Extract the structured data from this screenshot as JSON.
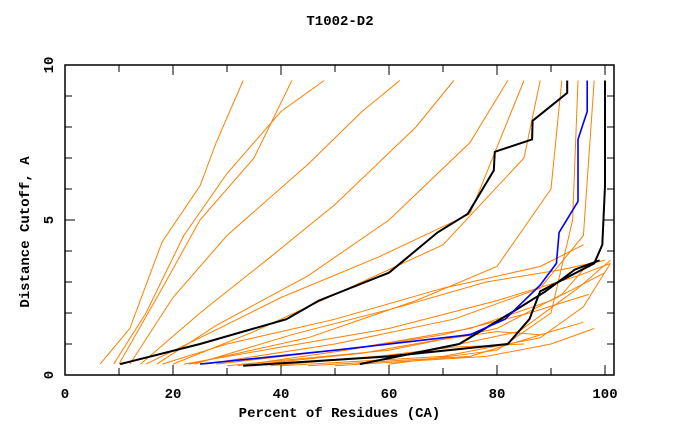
{
  "chart_data": {
    "type": "line",
    "title": "T1002-D2",
    "xlabel": "Percent of Residues (CA)",
    "ylabel": "Distance Cutoff, A",
    "xlim": [
      0,
      101.7
    ],
    "ylim": [
      0,
      10
    ],
    "xticks": [
      0,
      20,
      40,
      60,
      80,
      100
    ],
    "xtick_labels": [
      "0",
      "20",
      "40",
      "60",
      "80",
      "100"
    ],
    "yticks": [
      0,
      5,
      10
    ],
    "ytick_labels": [
      "0",
      "5",
      "10"
    ],
    "x_minor_step": 10,
    "y_minor_step": 1,
    "grid": false,
    "colors": {
      "other": "#ff8000",
      "highlight": "#000000",
      "selected": "#0000ff"
    },
    "series_orange": [
      [
        [
          6.5,
          0.35
        ],
        [
          12,
          1.5
        ],
        [
          18,
          4.3
        ],
        [
          25,
          6.1
        ],
        [
          28,
          7.5
        ],
        [
          33,
          9.5
        ]
      ],
      [
        [
          9,
          0.35
        ],
        [
          15,
          2.0
        ],
        [
          22,
          4.5
        ],
        [
          30,
          6.5
        ],
        [
          40,
          8.5
        ],
        [
          48,
          9.5
        ]
      ],
      [
        [
          12,
          0.35
        ],
        [
          20,
          2.5
        ],
        [
          30,
          4.5
        ],
        [
          45,
          6.8
        ],
        [
          55,
          8.5
        ],
        [
          62,
          9.5
        ]
      ],
      [
        [
          14,
          0.35
        ],
        [
          25,
          2.0
        ],
        [
          38,
          3.8
        ],
        [
          50,
          5.5
        ],
        [
          65,
          8.0
        ],
        [
          72,
          9.5
        ]
      ],
      [
        [
          17,
          0.35
        ],
        [
          28,
          1.6
        ],
        [
          45,
          3.2
        ],
        [
          60,
          5.0
        ],
        [
          75,
          7.5
        ],
        [
          82,
          9.5
        ]
      ],
      [
        [
          20,
          0.35
        ],
        [
          35,
          1.4
        ],
        [
          55,
          3.0
        ],
        [
          70,
          4.2
        ],
        [
          85,
          7.0
        ],
        [
          88,
          9.5
        ]
      ],
      [
        [
          23,
          0.35
        ],
        [
          45,
          1.2
        ],
        [
          65,
          2.4
        ],
        [
          80,
          3.5
        ],
        [
          90,
          6.0
        ],
        [
          92,
          9.5
        ]
      ],
      [
        [
          26,
          0.35
        ],
        [
          50,
          1.0
        ],
        [
          72,
          1.8
        ],
        [
          88,
          2.8
        ],
        [
          96,
          4.5
        ],
        [
          98,
          9.5
        ]
      ],
      [
        [
          30,
          0.3
        ],
        [
          60,
          0.8
        ],
        [
          80,
          1.5
        ],
        [
          92,
          2.6
        ],
        [
          97,
          3.6
        ]
      ],
      [
        [
          35,
          0.3
        ],
        [
          65,
          0.7
        ],
        [
          84,
          1.4
        ],
        [
          95,
          2.8
        ],
        [
          101,
          3.7
        ]
      ],
      [
        [
          40,
          0.3
        ],
        [
          70,
          0.6
        ],
        [
          88,
          1.2
        ],
        [
          96,
          2.2
        ],
        [
          101,
          3.6
        ]
      ],
      [
        [
          45,
          0.3
        ],
        [
          75,
          0.6
        ],
        [
          90,
          1.4
        ],
        [
          96,
          1.7
        ]
      ],
      [
        [
          50,
          0.3
        ],
        [
          78,
          0.6
        ],
        [
          90,
          1.0
        ],
        [
          98,
          1.5
        ]
      ],
      [
        [
          22,
          0.35
        ],
        [
          40,
          0.9
        ],
        [
          60,
          1.5
        ],
        [
          80,
          2.4
        ],
        [
          95,
          3.2
        ],
        [
          101,
          3.6
        ]
      ],
      [
        [
          28,
          0.35
        ],
        [
          55,
          0.9
        ],
        [
          75,
          1.5
        ],
        [
          90,
          2.4
        ],
        [
          100,
          3.3
        ]
      ],
      [
        [
          18,
          0.35
        ],
        [
          30,
          1.0
        ],
        [
          50,
          1.8
        ],
        [
          70,
          2.8
        ],
        [
          88,
          3.5
        ],
        [
          96,
          4.2
        ]
      ],
      [
        [
          15,
          0.35
        ],
        [
          25,
          1.2
        ],
        [
          40,
          2.5
        ],
        [
          58,
          3.8
        ],
        [
          75,
          5.2
        ],
        [
          85,
          9.5
        ]
      ],
      [
        [
          10,
          0.35
        ],
        [
          18,
          2.8
        ],
        [
          25,
          5.0
        ],
        [
          35,
          7.0
        ],
        [
          42,
          9.5
        ]
      ],
      [
        [
          33,
          0.3
        ],
        [
          55,
          0.7
        ],
        [
          68,
          1.1
        ],
        [
          80,
          1.4
        ],
        [
          88,
          1.3
        ]
      ],
      [
        [
          38,
          0.3
        ],
        [
          58,
          0.6
        ],
        [
          72,
          0.9
        ],
        [
          85,
          1.0
        ]
      ],
      [
        [
          60,
          0.35
        ],
        [
          80,
          0.8
        ],
        [
          90,
          2.0
        ],
        [
          94,
          5.0
        ],
        [
          95,
          9.5
        ]
      ],
      [
        [
          24,
          0.35
        ],
        [
          42,
          1.3
        ],
        [
          62,
          2.2
        ],
        [
          78,
          3.0
        ],
        [
          92,
          3.4
        ],
        [
          100,
          3.7
        ]
      ],
      [
        [
          32,
          0.3
        ],
        [
          52,
          0.8
        ],
        [
          70,
          1.3
        ],
        [
          86,
          2.0
        ],
        [
          97,
          2.6
        ]
      ]
    ],
    "series_black": [
      [
        [
          10.2,
          0.35
        ],
        [
          25,
          1.0
        ],
        [
          41,
          1.8
        ],
        [
          47,
          2.4
        ],
        [
          60,
          3.3
        ],
        [
          69,
          4.6
        ],
        [
          74.6,
          5.2
        ],
        [
          79.4,
          6.6
        ],
        [
          79.6,
          7.2
        ],
        [
          86.5,
          7.6
        ],
        [
          86.6,
          8.2
        ],
        [
          93,
          9.1
        ],
        [
          93,
          9.5
        ]
      ],
      [
        [
          33,
          0.3
        ],
        [
          60,
          0.6
        ],
        [
          82,
          1.0
        ],
        [
          86,
          1.8
        ],
        [
          88,
          2.7
        ],
        [
          98,
          3.6
        ],
        [
          99.5,
          4.2
        ],
        [
          100,
          6.1
        ],
        [
          100,
          9.5
        ]
      ],
      [
        [
          54.6,
          0.35
        ],
        [
          73,
          1.0
        ],
        [
          83.5,
          2.1
        ],
        [
          89,
          2.7
        ],
        [
          94.4,
          3.4
        ],
        [
          99,
          3.7
        ]
      ]
    ],
    "series_blue": [
      [
        [
          25,
          0.35
        ],
        [
          50,
          0.8
        ],
        [
          75,
          1.3
        ],
        [
          81.5,
          1.8
        ],
        [
          88,
          2.9
        ],
        [
          91,
          3.6
        ],
        [
          91.5,
          4.6
        ],
        [
          95,
          5.6
        ],
        [
          95,
          7.6
        ],
        [
          96.7,
          8.5
        ],
        [
          96.7,
          9.5
        ]
      ]
    ]
  }
}
